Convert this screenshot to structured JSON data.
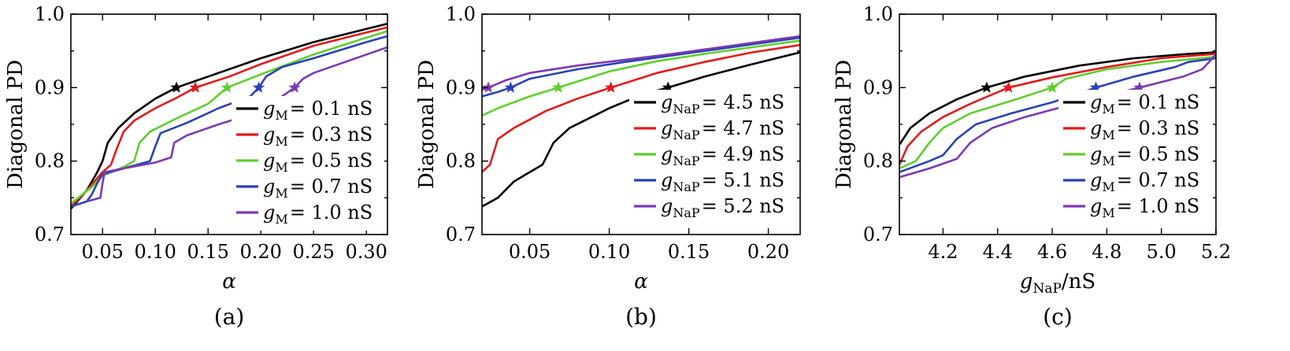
{
  "chart_data": [
    {
      "type": "line",
      "panel_label": "(a)",
      "ylabel": "Diagonal PD",
      "xlabel": "α",
      "xlim": [
        0.02,
        0.32
      ],
      "ylim": [
        0.7,
        1.0
      ],
      "xticks": [
        0.05,
        0.1,
        0.15,
        0.2,
        0.25,
        0.3
      ],
      "xtick_labels": [
        "0.05",
        "0.10",
        "0.15",
        "0.20",
        "0.25",
        "0.30"
      ],
      "yticks": [
        0.7,
        0.8,
        0.9,
        1.0
      ],
      "ytick_labels": [
        "0.7",
        "0.8",
        "0.9",
        "1.0"
      ],
      "legend_position": "lower-right",
      "series": [
        {
          "legend_var": "g",
          "legend_sub": "M",
          "legend_value": "= 0.1 nS",
          "color": "#000000",
          "points": [
            [
              0.02,
              0.735
            ],
            [
              0.035,
              0.76
            ],
            [
              0.045,
              0.785
            ],
            [
              0.05,
              0.8
            ],
            [
              0.055,
              0.825
            ],
            [
              0.065,
              0.845
            ],
            [
              0.08,
              0.865
            ],
            [
              0.1,
              0.885
            ],
            [
              0.12,
              0.9
            ],
            [
              0.15,
              0.915
            ],
            [
              0.2,
              0.94
            ],
            [
              0.25,
              0.962
            ],
            [
              0.3,
              0.98
            ],
            [
              0.32,
              0.987
            ]
          ],
          "marker": [
            0.12,
            0.9
          ]
        },
        {
          "legend_var": "g",
          "legend_sub": "M",
          "legend_value": "= 0.3 nS",
          "color": "#e31a1c",
          "points": [
            [
              0.02,
              0.738
            ],
            [
              0.035,
              0.76
            ],
            [
              0.05,
              0.785
            ],
            [
              0.058,
              0.795
            ],
            [
              0.063,
              0.815
            ],
            [
              0.07,
              0.84
            ],
            [
              0.08,
              0.855
            ],
            [
              0.1,
              0.872
            ],
            [
              0.12,
              0.886
            ],
            [
              0.138,
              0.9
            ],
            [
              0.17,
              0.915
            ],
            [
              0.2,
              0.932
            ],
            [
              0.25,
              0.957
            ],
            [
              0.3,
              0.975
            ],
            [
              0.32,
              0.982
            ]
          ],
          "marker": [
            0.138,
            0.9
          ]
        },
        {
          "legend_var": "g",
          "legend_sub": "M",
          "legend_value": "= 0.5 nS",
          "color": "#5fcf2e",
          "points": [
            [
              0.02,
              0.742
            ],
            [
              0.04,
              0.765
            ],
            [
              0.05,
              0.78
            ],
            [
              0.07,
              0.792
            ],
            [
              0.08,
              0.8
            ],
            [
              0.085,
              0.825
            ],
            [
              0.095,
              0.84
            ],
            [
              0.12,
              0.858
            ],
            [
              0.15,
              0.878
            ],
            [
              0.168,
              0.9
            ],
            [
              0.2,
              0.918
            ],
            [
              0.25,
              0.945
            ],
            [
              0.3,
              0.968
            ],
            [
              0.32,
              0.977
            ]
          ],
          "marker": [
            0.168,
            0.9
          ]
        },
        {
          "legend_var": "g",
          "legend_sub": "M",
          "legend_value": "= 0.7 nS",
          "color": "#2942b5",
          "points": [
            [
              0.02,
              0.738
            ],
            [
              0.035,
              0.745
            ],
            [
              0.04,
              0.755
            ],
            [
              0.045,
              0.77
            ],
            [
              0.05,
              0.782
            ],
            [
              0.07,
              0.79
            ],
            [
              0.095,
              0.8
            ],
            [
              0.1,
              0.82
            ],
            [
              0.105,
              0.838
            ],
            [
              0.13,
              0.852
            ],
            [
              0.16,
              0.872
            ],
            [
              0.19,
              0.888
            ],
            [
              0.198,
              0.9
            ],
            [
              0.205,
              0.915
            ],
            [
              0.22,
              0.928
            ],
            [
              0.25,
              0.94
            ],
            [
              0.3,
              0.962
            ],
            [
              0.32,
              0.97
            ]
          ],
          "marker": [
            0.198,
            0.9
          ]
        },
        {
          "legend_var": "g",
          "legend_sub": "M",
          "legend_value": "= 1.0 nS",
          "color": "#7b3ab2",
          "points": [
            [
              0.035,
              0.745
            ],
            [
              0.048,
              0.75
            ],
            [
              0.05,
              0.77
            ],
            [
              0.052,
              0.785
            ],
            [
              0.07,
              0.79
            ],
            [
              0.1,
              0.798
            ],
            [
              0.115,
              0.805
            ],
            [
              0.118,
              0.825
            ],
            [
              0.13,
              0.835
            ],
            [
              0.16,
              0.85
            ],
            [
              0.2,
              0.868
            ],
            [
              0.232,
              0.9
            ],
            [
              0.24,
              0.912
            ],
            [
              0.25,
              0.92
            ],
            [
              0.28,
              0.935
            ],
            [
              0.32,
              0.955
            ]
          ],
          "marker": [
            0.232,
            0.9
          ]
        }
      ]
    },
    {
      "type": "line",
      "panel_label": "(b)",
      "ylabel": "Diagonal PD",
      "xlabel": "α",
      "xlim": [
        0.02,
        0.22
      ],
      "ylim": [
        0.7,
        1.0
      ],
      "xticks": [
        0.05,
        0.1,
        0.15,
        0.2
      ],
      "xtick_labels": [
        "0.05",
        "0.10",
        "0.15",
        "0.20"
      ],
      "yticks": [
        0.7,
        0.8,
        0.9,
        1.0
      ],
      "ytick_labels": [
        "0.7",
        "0.8",
        "0.9",
        "1.0"
      ],
      "legend_position": "lower-right",
      "series": [
        {
          "legend_var": "g",
          "legend_sub": "NaP",
          "legend_value": "= 4.5 nS",
          "color": "#000000",
          "points": [
            [
              0.02,
              0.738
            ],
            [
              0.03,
              0.75
            ],
            [
              0.04,
              0.772
            ],
            [
              0.05,
              0.785
            ],
            [
              0.058,
              0.795
            ],
            [
              0.065,
              0.825
            ],
            [
              0.075,
              0.845
            ],
            [
              0.1,
              0.872
            ],
            [
              0.12,
              0.89
            ],
            [
              0.137,
              0.9
            ],
            [
              0.16,
              0.915
            ],
            [
              0.19,
              0.932
            ],
            [
              0.22,
              0.948
            ]
          ],
          "marker": [
            0.137,
            0.9
          ]
        },
        {
          "legend_var": "g",
          "legend_sub": "NaP",
          "legend_value": "= 4.7 nS",
          "color": "#e31a1c",
          "points": [
            [
              0.02,
              0.785
            ],
            [
              0.025,
              0.795
            ],
            [
              0.03,
              0.83
            ],
            [
              0.04,
              0.845
            ],
            [
              0.06,
              0.868
            ],
            [
              0.08,
              0.885
            ],
            [
              0.101,
              0.9
            ],
            [
              0.13,
              0.92
            ],
            [
              0.16,
              0.935
            ],
            [
              0.19,
              0.948
            ],
            [
              0.22,
              0.958
            ]
          ],
          "marker": [
            0.101,
            0.9
          ]
        },
        {
          "legend_var": "g",
          "legend_sub": "NaP",
          "legend_value": "= 4.9 nS",
          "color": "#5fcf2e",
          "points": [
            [
              0.02,
              0.862
            ],
            [
              0.03,
              0.872
            ],
            [
              0.05,
              0.888
            ],
            [
              0.068,
              0.9
            ],
            [
              0.1,
              0.922
            ],
            [
              0.13,
              0.936
            ],
            [
              0.16,
              0.946
            ],
            [
              0.19,
              0.955
            ],
            [
              0.22,
              0.964
            ]
          ],
          "marker": [
            0.068,
            0.9
          ]
        },
        {
          "legend_var": "g",
          "legend_sub": "NaP",
          "legend_value": "= 5.1 nS",
          "color": "#2942b5",
          "points": [
            [
              0.02,
              0.888
            ],
            [
              0.03,
              0.894
            ],
            [
              0.038,
              0.9
            ],
            [
              0.05,
              0.912
            ],
            [
              0.08,
              0.925
            ],
            [
              0.11,
              0.935
            ],
            [
              0.14,
              0.944
            ],
            [
              0.17,
              0.953
            ],
            [
              0.2,
              0.962
            ],
            [
              0.22,
              0.968
            ]
          ],
          "marker": [
            0.038,
            0.9
          ]
        },
        {
          "legend_var": "g",
          "legend_sub": "NaP",
          "legend_value": "= 5.2 nS",
          "color": "#7b3ab2",
          "points": [
            [
              0.02,
              0.897
            ],
            [
              0.024,
              0.9
            ],
            [
              0.035,
              0.91
            ],
            [
              0.05,
              0.92
            ],
            [
              0.08,
              0.93
            ],
            [
              0.11,
              0.938
            ],
            [
              0.14,
              0.946
            ],
            [
              0.17,
              0.955
            ],
            [
              0.2,
              0.964
            ],
            [
              0.22,
              0.97
            ]
          ],
          "marker": [
            0.024,
            0.9
          ]
        }
      ]
    },
    {
      "type": "line",
      "panel_label": "(c)",
      "ylabel": "Diagonal PD",
      "xlabel_var": "g",
      "xlabel_sub": "NaP",
      "xlabel_unit": "/nS",
      "xlim": [
        4.04,
        5.2
      ],
      "ylim": [
        0.7,
        1.0
      ],
      "xticks": [
        4.2,
        4.4,
        4.6,
        4.8,
        5.0,
        5.2
      ],
      "xtick_labels": [
        "4.2",
        "4.4",
        "4.6",
        "4.8",
        "5.0",
        "5.2"
      ],
      "yticks": [
        0.7,
        0.8,
        0.9,
        1.0
      ],
      "ytick_labels": [
        "0.7",
        "0.8",
        "0.9",
        "1.0"
      ],
      "legend_position": "lower-right",
      "series": [
        {
          "legend_var": "g",
          "legend_sub": "M",
          "legend_value": "= 0.1 nS",
          "color": "#000000",
          "points": [
            [
              4.04,
              0.822
            ],
            [
              4.08,
              0.845
            ],
            [
              4.15,
              0.865
            ],
            [
              4.25,
              0.884
            ],
            [
              4.36,
              0.9
            ],
            [
              4.5,
              0.915
            ],
            [
              4.7,
              0.93
            ],
            [
              4.9,
              0.94
            ],
            [
              5.1,
              0.946
            ],
            [
              5.2,
              0.948
            ]
          ],
          "marker": [
            4.36,
            0.9
          ]
        },
        {
          "legend_var": "g",
          "legend_sub": "M",
          "legend_value": "= 0.3 nS",
          "color": "#e31a1c",
          "points": [
            [
              4.04,
              0.795
            ],
            [
              4.07,
              0.82
            ],
            [
              4.12,
              0.84
            ],
            [
              4.2,
              0.86
            ],
            [
              4.3,
              0.878
            ],
            [
              4.44,
              0.9
            ],
            [
              4.6,
              0.914
            ],
            [
              4.8,
              0.928
            ],
            [
              5.0,
              0.94
            ],
            [
              5.2,
              0.946
            ]
          ],
          "marker": [
            4.44,
            0.9
          ]
        },
        {
          "legend_var": "g",
          "legend_sub": "M",
          "legend_value": "= 0.5 nS",
          "color": "#5fcf2e",
          "points": [
            [
              4.04,
              0.79
            ],
            [
              4.1,
              0.8
            ],
            [
              4.15,
              0.825
            ],
            [
              4.2,
              0.845
            ],
            [
              4.3,
              0.865
            ],
            [
              4.45,
              0.882
            ],
            [
              4.6,
              0.9
            ],
            [
              4.65,
              0.912
            ],
            [
              4.8,
              0.925
            ],
            [
              5.0,
              0.935
            ],
            [
              5.2,
              0.942
            ]
          ],
          "marker": [
            4.6,
            0.9
          ]
        },
        {
          "legend_var": "g",
          "legend_sub": "M",
          "legend_value": "= 0.7 nS",
          "color": "#2942b5",
          "points": [
            [
              4.04,
              0.785
            ],
            [
              4.15,
              0.8
            ],
            [
              4.2,
              0.808
            ],
            [
              4.25,
              0.83
            ],
            [
              4.32,
              0.85
            ],
            [
              4.45,
              0.865
            ],
            [
              4.6,
              0.88
            ],
            [
              4.76,
              0.9
            ],
            [
              4.9,
              0.915
            ],
            [
              5.05,
              0.928
            ],
            [
              5.1,
              0.935
            ],
            [
              5.2,
              0.94
            ]
          ],
          "marker": [
            4.76,
            0.9
          ]
        },
        {
          "legend_var": "g",
          "legend_sub": "M",
          "legend_value": "= 1.0 nS",
          "color": "#7b3ab2",
          "points": [
            [
              4.04,
              0.778
            ],
            [
              4.15,
              0.79
            ],
            [
              4.25,
              0.803
            ],
            [
              4.3,
              0.825
            ],
            [
              4.38,
              0.845
            ],
            [
              4.5,
              0.86
            ],
            [
              4.7,
              0.88
            ],
            [
              4.92,
              0.9
            ],
            [
              5.08,
              0.915
            ],
            [
              5.15,
              0.925
            ],
            [
              5.2,
              0.945
            ]
          ],
          "marker": [
            4.92,
            0.9
          ]
        }
      ]
    }
  ]
}
